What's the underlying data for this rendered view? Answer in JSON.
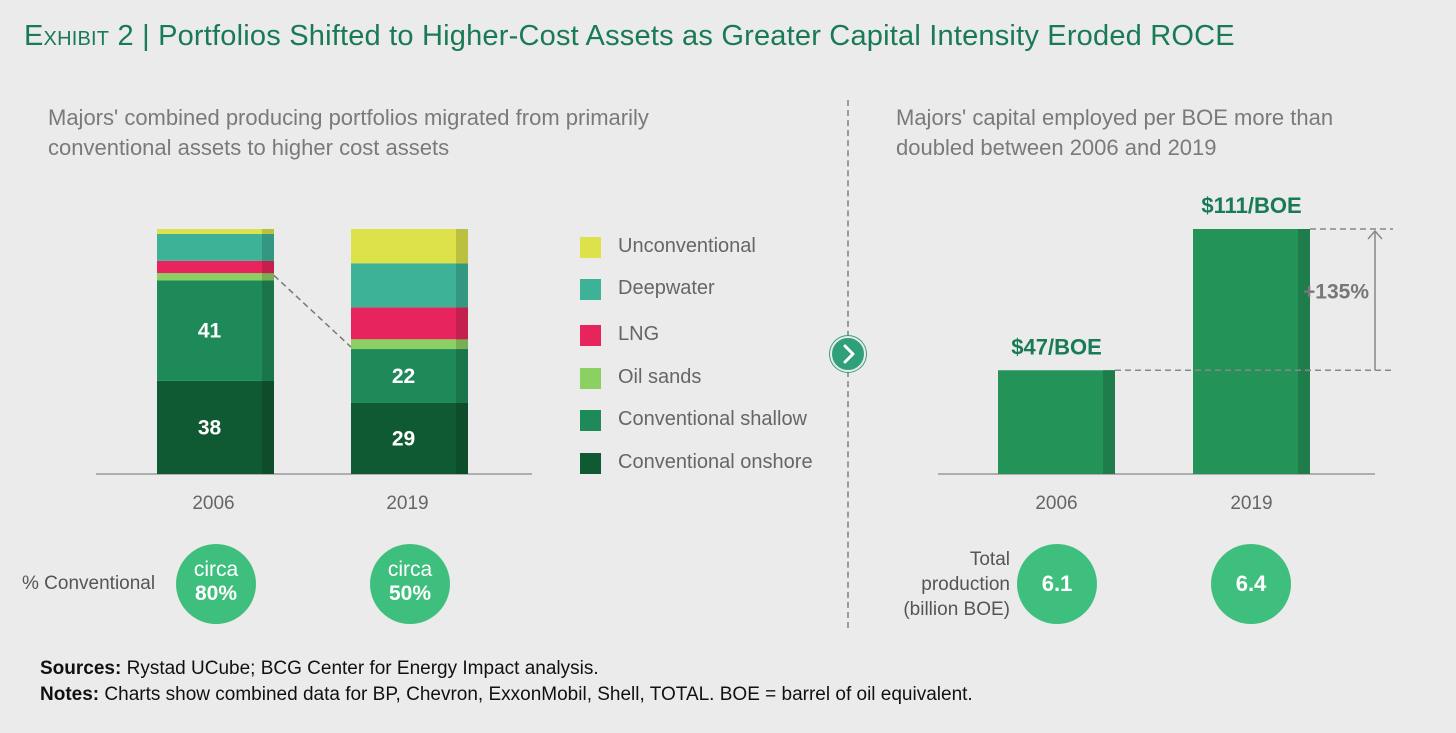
{
  "exhibit": {
    "label": "Exhibit 2",
    "separator": "|",
    "title": "Portfolios Shifted to Higher-Cost Assets as Greater Capital Intensity Eroded ROCE"
  },
  "left_subtitle": "Majors' combined producing portfolios migrated from primarily conventional assets to higher cost assets",
  "right_subtitle": "Majors' capital employed per BOE more than doubled between 2006 and 2019",
  "colors": {
    "Unconventional": "#dde24a",
    "Deepwater": "#3db296",
    "LNG": "#e8245c",
    "Oil sands": "#8ccf62",
    "Conventional shallow": "#1e8a5a",
    "Conventional onshore": "#0f5a33",
    "capital_bar": "#239358",
    "badge": "#3fbf7d",
    "accent": "#197a56"
  },
  "chart_data": [
    {
      "type": "bar",
      "stacked": true,
      "categories": [
        "2006",
        "2019"
      ],
      "series": [
        {
          "name": "Conventional onshore",
          "values": [
            38,
            29
          ],
          "labels": [
            "38",
            "29"
          ]
        },
        {
          "name": "Conventional shallow",
          "values": [
            41,
            22
          ],
          "labels": [
            "41",
            "22"
          ]
        },
        {
          "name": "Oil sands",
          "values": [
            3,
            4
          ],
          "labels": [
            "",
            ""
          ]
        },
        {
          "name": "LNG",
          "values": [
            5,
            13
          ],
          "labels": [
            "",
            ""
          ]
        },
        {
          "name": "Deepwater",
          "values": [
            11,
            18
          ],
          "labels": [
            "",
            ""
          ]
        },
        {
          "name": "Unconventional",
          "values": [
            2,
            14
          ],
          "labels": [
            "",
            ""
          ]
        }
      ],
      "ylim": [
        0,
        100
      ],
      "legend": "right",
      "grid": false,
      "annotation": "dashed connector from top of 2006 conventional to top of 2019 conventional"
    },
    {
      "type": "bar",
      "categories": [
        "2006",
        "2019"
      ],
      "values": [
        47,
        111
      ],
      "value_labels": [
        "$47/BOE",
        "$111/BOE"
      ],
      "annotation": "+135%",
      "ylim": [
        0,
        111
      ],
      "grid": false
    }
  ],
  "conventional": {
    "label": "% Conventional",
    "badges": [
      {
        "line1": "circa",
        "line2": "80%"
      },
      {
        "line1": "circa",
        "line2": "50%"
      }
    ]
  },
  "production": {
    "label_lines": [
      "Total",
      "production",
      "(billion BOE)"
    ],
    "values": [
      "6.1",
      "6.4"
    ]
  },
  "footer": {
    "sources_label": "Sources:",
    "sources_text": "Rystad UCube; BCG Center for Energy Impact analysis.",
    "notes_label": "Notes:",
    "notes_text": "Charts show combined data for BP, Chevron, ExxonMobil, Shell, TOTAL. BOE = barrel of oil equivalent."
  }
}
